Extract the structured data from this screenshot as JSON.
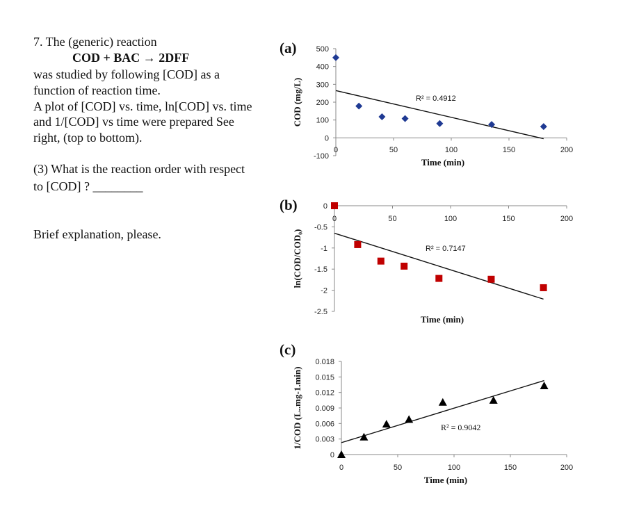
{
  "question": {
    "lines": [
      "7. The (generic) reaction",
      "COD + BAC → 2DFF",
      "was studied by following [COD] as a",
      "function of reaction time.",
      "A plot of [COD] vs. time, ln[COD] vs. time",
      "and 1/[COD] vs time were prepared See",
      "right, (top to bottom)."
    ],
    "part3_line1": "(3) What is the reaction order with respect",
    "part3_line2": "to [COD] ?  ________",
    "explanation_prompt": "Brief explanation, please."
  },
  "chart_data": [
    {
      "type": "scatter",
      "panel_label": "(a)",
      "xlabel": "Time (min)",
      "ylabel": "COD (mg/L)",
      "xlim": [
        0,
        200
      ],
      "ylim": [
        -100,
        500
      ],
      "xticks": [
        "0",
        "50",
        "100",
        "150",
        "200"
      ],
      "yticks": [
        "-100",
        "0",
        "100",
        "200",
        "300",
        "400",
        "500"
      ],
      "marker": "diamond",
      "color": "#1f3a93",
      "x": [
        0,
        20,
        40,
        60,
        90,
        135,
        180
      ],
      "y": [
        450,
        178,
        118,
        108,
        80,
        75,
        63
      ],
      "trendline": {
        "x": [
          0,
          180
        ],
        "y": [
          265,
          -5
        ]
      },
      "annotation": "R² = 0.4912",
      "grid": false
    },
    {
      "type": "scatter",
      "panel_label": "(b)",
      "xlabel": "Time (min)",
      "ylabel": "ln(COD/COD₀)",
      "xlim": [
        0,
        200
      ],
      "ylim": [
        -2.5,
        0
      ],
      "xticks": [
        "0",
        "50",
        "100",
        "150",
        "200"
      ],
      "yticks": [
        "-2.5",
        "-2",
        "-1.5",
        "-1",
        "-0.5",
        "0"
      ],
      "marker": "square",
      "color": "#c00000",
      "x": [
        0,
        20,
        40,
        60,
        90,
        135,
        180
      ],
      "y": [
        0,
        -0.92,
        -1.31,
        -1.43,
        -1.72,
        -1.74,
        -1.94
      ],
      "trendline": {
        "x": [
          0,
          180
        ],
        "y": [
          -0.65,
          -2.21
        ]
      },
      "annotation": "R² = 0.7147",
      "grid": false
    },
    {
      "type": "scatter",
      "panel_label": "(c)",
      "xlabel": "Time (min)",
      "ylabel": "1/COD (L..mg-1.min)",
      "xlim": [
        0,
        200
      ],
      "ylim": [
        0,
        0.018
      ],
      "xticks": [
        "0",
        "50",
        "100",
        "150",
        "200"
      ],
      "yticks": [
        "0",
        "0.003",
        "0.006",
        "0.009",
        "0.012",
        "0.015",
        "0.018"
      ],
      "marker": "triangle",
      "color": "#000000",
      "x": [
        0,
        20,
        40,
        60,
        90,
        135,
        180
      ],
      "y": [
        0,
        0.0034,
        0.0059,
        0.0068,
        0.0101,
        0.0105,
        0.0133
      ],
      "trendline": {
        "x": [
          0,
          180
        ],
        "y": [
          0.0023,
          0.0143
        ]
      },
      "annotation": "R² = 0.9042",
      "grid": false
    }
  ]
}
